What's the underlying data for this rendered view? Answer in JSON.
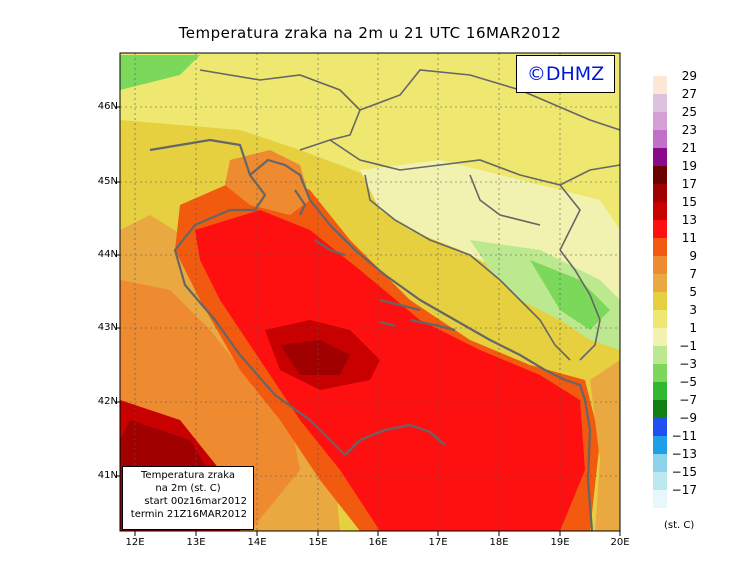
{
  "title": "Temperatura zraka na 2m u 21 UTC 16MAR2012",
  "credit": "©DHMZ",
  "info_box": {
    "line1": "Temperatura zraka",
    "line2": "na 2m (st. C)",
    "line3": "start 00z16mar2012",
    "line4": "termin 21Z16MAR2012"
  },
  "lat_labels": [
    "46N",
    "45N",
    "44N",
    "43N",
    "42N",
    "41N"
  ],
  "lon_labels": [
    "12E",
    "13E",
    "14E",
    "15E",
    "16E",
    "17E",
    "18E",
    "19E",
    "20E"
  ],
  "colorbar": {
    "labels": [
      "29",
      "27",
      "25",
      "23",
      "21",
      "19",
      "17",
      "15",
      "13",
      "11",
      "9",
      "7",
      "5",
      "3",
      "1",
      "−1",
      "−3",
      "−5",
      "−7",
      "−9",
      "−11",
      "−13",
      "−15",
      "−17"
    ],
    "colors": [
      "#fde8d8",
      "#dcc2dc",
      "#d6a0d6",
      "#c070c8",
      "#8a0a8a",
      "#6a0000",
      "#a00000",
      "#c80000",
      "#ff1010",
      "#f25a10",
      "#ee8a30",
      "#eaa840",
      "#e6d040",
      "#eee870",
      "#f2f2b0",
      "#bce890",
      "#7cd85a",
      "#30b830",
      "#108010",
      "#2050f0",
      "#1ea0e8",
      "#8cd2e8",
      "#bce8f0",
      "#e6f8fa"
    ],
    "unit": "(st. C)"
  }
}
